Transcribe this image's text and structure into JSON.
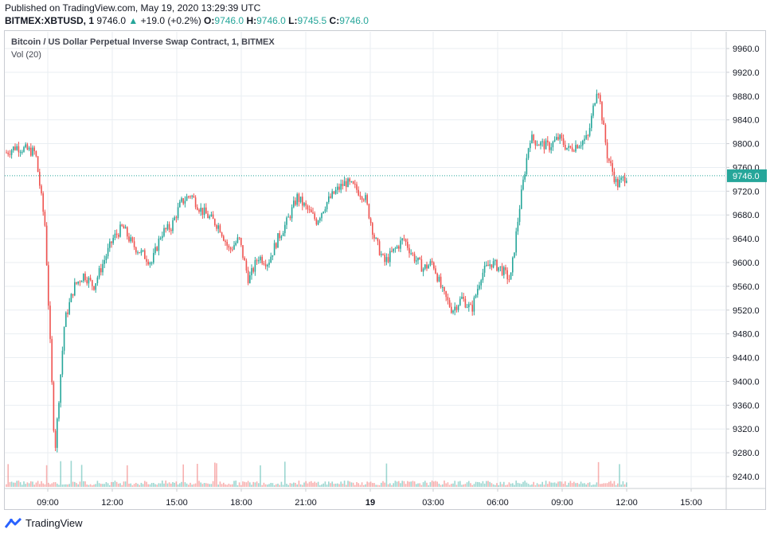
{
  "header": {
    "published": "Published on TradingView.com, May 19, 2020 13:29:39 UTC",
    "symbol": "BITMEX:XBTUSD, 1",
    "last": "9746.0",
    "change": "+19.0 (+0.2%)",
    "o_label": "O:",
    "o_value": "9746.0",
    "h_label": "H:",
    "h_value": "9746.0",
    "l_label": "L:",
    "l_value": "9745.5",
    "c_label": "C:",
    "c_value": "9746.0"
  },
  "pane": {
    "title": "Bitcoin / US Dollar Perpetual Inverse Swap Contract, 1, BITMEX",
    "volume_label": "Vol (20)"
  },
  "footer": {
    "brand": "TradingView",
    "logo_icon": "tradingview-logo-icon"
  },
  "colors": {
    "up": "#26a69a",
    "down": "#ef5350",
    "grid": "#e9eef2",
    "price_line": "#26a69a",
    "price_badge": "#26a69a"
  },
  "chart_data": {
    "type": "candlestick",
    "ylim": [
      9210,
      9985
    ],
    "y_ticks": [
      "9960.0",
      "9920.0",
      "9880.0",
      "9840.0",
      "9800.0",
      "9760.0",
      "9720.0",
      "9680.0",
      "9640.0",
      "9600.0",
      "9560.0",
      "9520.0",
      "9480.0",
      "9440.0",
      "9400.0",
      "9360.0",
      "9320.0",
      "9280.0",
      "9240.0"
    ],
    "x_ticks": [
      "09:00",
      "12:00",
      "15:00",
      "18:00",
      "21:00",
      "19",
      "03:00",
      "06:00",
      "09:00",
      "12:00",
      "15:00"
    ],
    "last_price": 9746.0,
    "last_price_label": "9746.0",
    "series": [
      {
        "x": "07:00",
        "y": 9785
      },
      {
        "x": "07:30",
        "y": 9795
      },
      {
        "x": "08:00",
        "y": 9790
      },
      {
        "x": "08:20",
        "y": 9785
      },
      {
        "x": "08:40",
        "y": 9660
      },
      {
        "x": "08:45",
        "y": 9280
      },
      {
        "x": "08:50",
        "y": 9500
      },
      {
        "x": "09:00",
        "y": 9560
      },
      {
        "x": "09:30",
        "y": 9580
      },
      {
        "x": "10:00",
        "y": 9560
      },
      {
        "x": "10:30",
        "y": 9600
      },
      {
        "x": "11:00",
        "y": 9640
      },
      {
        "x": "11:30",
        "y": 9660
      },
      {
        "x": "12:00",
        "y": 9630
      },
      {
        "x": "12:30",
        "y": 9615
      },
      {
        "x": "13:00",
        "y": 9600
      },
      {
        "x": "13:30",
        "y": 9650
      },
      {
        "x": "14:00",
        "y": 9660
      },
      {
        "x": "14:30",
        "y": 9700
      },
      {
        "x": "15:00",
        "y": 9715
      },
      {
        "x": "15:30",
        "y": 9690
      },
      {
        "x": "16:00",
        "y": 9675
      },
      {
        "x": "16:30",
        "y": 9660
      },
      {
        "x": "17:00",
        "y": 9620
      },
      {
        "x": "17:30",
        "y": 9640
      },
      {
        "x": "18:00",
        "y": 9570
      },
      {
        "x": "18:30",
        "y": 9610
      },
      {
        "x": "19:00",
        "y": 9600
      },
      {
        "x": "19:30",
        "y": 9640
      },
      {
        "x": "20:00",
        "y": 9670
      },
      {
        "x": "20:30",
        "y": 9710
      },
      {
        "x": "21:00",
        "y": 9690
      },
      {
        "x": "21:30",
        "y": 9670
      },
      {
        "x": "22:00",
        "y": 9700
      },
      {
        "x": "22:30",
        "y": 9720
      },
      {
        "x": "23:00",
        "y": 9735
      },
      {
        "x": "23:30",
        "y": 9725
      },
      {
        "x": "00:00",
        "y": 9710
      },
      {
        "x": "00:30",
        "y": 9640
      },
      {
        "x": "01:00",
        "y": 9600
      },
      {
        "x": "01:30",
        "y": 9620
      },
      {
        "x": "02:00",
        "y": 9640
      },
      {
        "x": "02:30",
        "y": 9610
      },
      {
        "x": "03:00",
        "y": 9590
      },
      {
        "x": "03:30",
        "y": 9600
      },
      {
        "x": "04:00",
        "y": 9550
      },
      {
        "x": "04:30",
        "y": 9520
      },
      {
        "x": "05:00",
        "y": 9540
      },
      {
        "x": "05:30",
        "y": 9520
      },
      {
        "x": "06:00",
        "y": 9580
      },
      {
        "x": "06:30",
        "y": 9600
      },
      {
        "x": "07:00",
        "y": 9590
      },
      {
        "x": "07:30",
        "y": 9570
      },
      {
        "x": "08:00",
        "y": 9700
      },
      {
        "x": "08:15",
        "y": 9810
      },
      {
        "x": "08:30",
        "y": 9800
      },
      {
        "x": "09:00",
        "y": 9795
      },
      {
        "x": "09:30",
        "y": 9810
      },
      {
        "x": "10:00",
        "y": 9790
      },
      {
        "x": "10:30",
        "y": 9800
      },
      {
        "x": "11:00",
        "y": 9810
      },
      {
        "x": "11:20",
        "y": 9900
      },
      {
        "x": "11:30",
        "y": 9780
      },
      {
        "x": "11:45",
        "y": 9730
      },
      {
        "x": "12:00",
        "y": 9746
      }
    ]
  }
}
